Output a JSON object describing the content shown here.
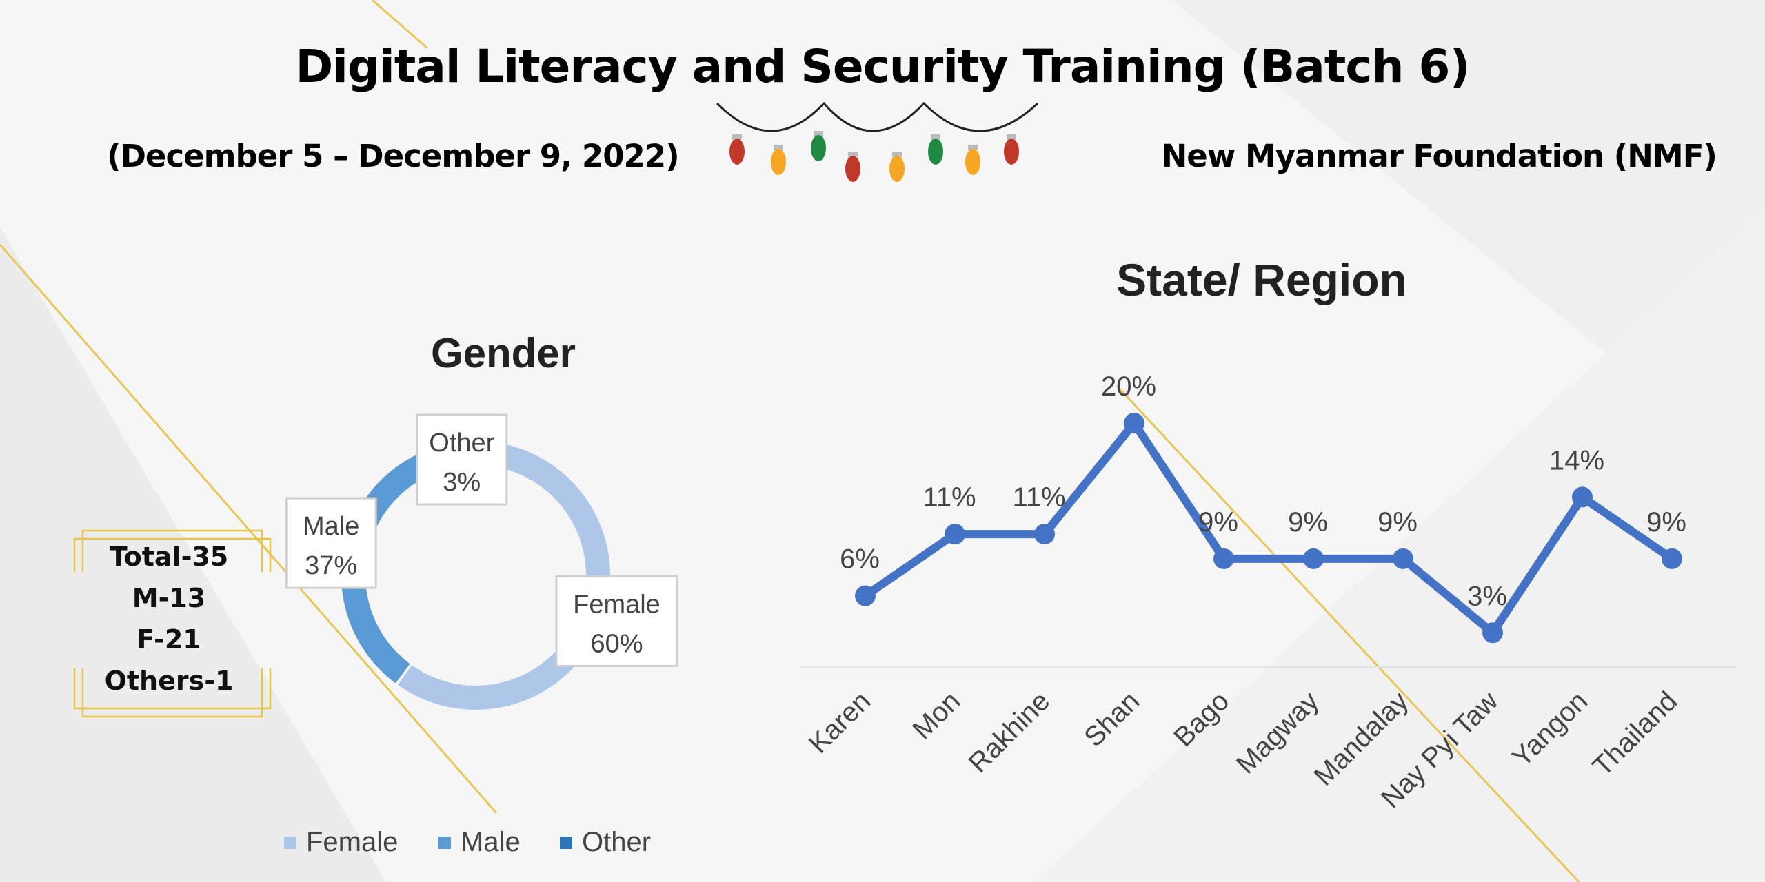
{
  "header": {
    "title": "Digital Literacy and Security Training (Batch 6)",
    "dates": "(December 5 – December 9, 2022)",
    "organization": "New Myanmar Foundation (NMF)"
  },
  "summary": {
    "lines": [
      "Total-35",
      "M-13",
      "F-21",
      "Others-1"
    ]
  },
  "colors": {
    "female": "#aec6e8",
    "male": "#5b9bd5",
    "other": "#2e75b6",
    "line": "#4472c4",
    "gold": "#e8c547"
  },
  "chart_data": [
    {
      "type": "pie",
      "title": "Gender",
      "labels": [
        "Female",
        "Male",
        "Other"
      ],
      "values": [
        60,
        37,
        3
      ],
      "data_labels": [
        "60%",
        "37%",
        "3%"
      ],
      "legend": "bottom",
      "donut": true
    },
    {
      "type": "line",
      "title": "State/ Region",
      "categories": [
        "Karen",
        "Mon",
        "Rakhine",
        "Shan",
        "Bago",
        "Magway",
        "Mandalay",
        "Nay Pyi Taw",
        "Yangon",
        "Thailand"
      ],
      "series": [
        {
          "values": [
            6,
            11,
            11,
            20,
            9,
            9,
            9,
            3,
            14,
            9
          ]
        }
      ],
      "data_labels": [
        "6%",
        "11%",
        "11%",
        "20%",
        "9%",
        "9%",
        "9%",
        "3%",
        "14%",
        "9%"
      ],
      "ylim": [
        0,
        20
      ],
      "grid": false,
      "legend": "none"
    }
  ]
}
